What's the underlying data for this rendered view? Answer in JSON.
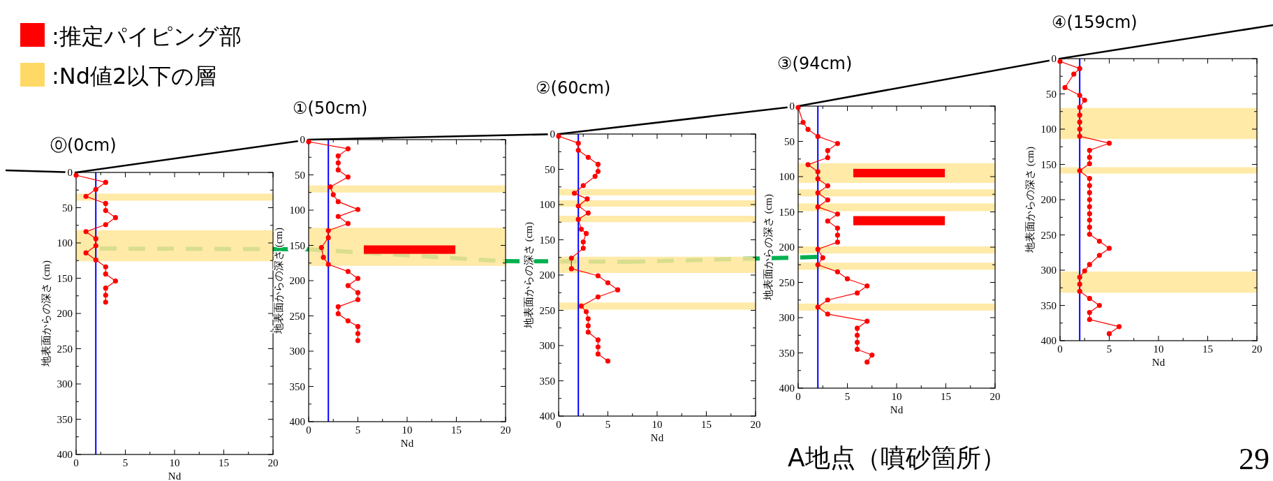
{
  "chart_data": [
    {
      "type": "other",
      "categories": [
        ":推定パイピング部",
        ":Nd値2以下の層"
      ],
      "colors": [
        "#ff0000",
        "#ffd966"
      ],
      "annotations": [
        "A地点（噴砂箇所）",
        "29"
      ]
    },
    {
      "type": "line",
      "title": "⓪(0cm)",
      "xlabel": "Nd",
      "ylabel": "地表面からの深さ (cm)",
      "xlim": [
        0,
        20
      ],
      "ylim": [
        400,
        0
      ],
      "xticks": [
        0,
        {
          "value": 2.5,
          "label": null
        },
        5,
        {
          "value": 7.5,
          "label": null
        },
        10,
        {
          "value": 12.5,
          "label": null
        },
        15,
        {
          "value": 17.5,
          "label": null
        },
        20
      ],
      "yticks": [
        0,
        {
          "value": 25,
          "label": null
        },
        50,
        {
          "value": 75,
          "label": null
        },
        100,
        {
          "value": 125,
          "label": null
        },
        150,
        {
          "value": 175,
          "label": null
        },
        200,
        {
          "value": 225,
          "label": null
        },
        250,
        {
          "value": 275,
          "label": null
        },
        300,
        {
          "value": 325,
          "label": null
        },
        350,
        {
          "value": 375,
          "label": null
        },
        400
      ],
      "marker": "circle",
      "series": [
        {
          "color": "#ff0000",
          "x": [
            0,
            3,
            2,
            1,
            3,
            3,
            4,
            3,
            1,
            2,
            2,
            1,
            2,
            3,
            3,
            4,
            3,
            3,
            3
          ],
          "values": [
            4,
            14,
            24,
            34,
            44,
            54,
            64,
            74,
            84,
            94,
            104,
            114,
            124,
            134,
            144,
            154,
            164,
            174,
            184
          ]
        }
      ],
      "ref_lines": [
        {
          "axis": "x",
          "value": 2,
          "color": "#0000ff"
        }
      ],
      "bands": [
        {
          "axis": "y",
          "from": 30,
          "to": 40,
          "color": "#ffe699"
        },
        {
          "axis": "y",
          "from": 82,
          "to": 126,
          "color": "#ffe699"
        }
      ]
    },
    {
      "type": "line",
      "title": "①(50cm)",
      "xlabel": "Nd",
      "ylabel": "地表面からの深さ (cm)",
      "xlim": [
        0,
        20
      ],
      "ylim": [
        400,
        0
      ],
      "xticks": [
        0,
        {
          "value": 2.5,
          "label": null
        },
        5,
        {
          "value": 7.5,
          "label": null
        },
        10,
        {
          "value": 12.5,
          "label": null
        },
        15,
        {
          "value": 17.5,
          "label": null
        },
        20
      ],
      "yticks": [
        0,
        {
          "value": 25,
          "label": null
        },
        50,
        {
          "value": 75,
          "label": null
        },
        100,
        {
          "value": 125,
          "label": null
        },
        150,
        {
          "value": 175,
          "label": null
        },
        200,
        {
          "value": 225,
          "label": null
        },
        250,
        {
          "value": 275,
          "label": null
        },
        300,
        {
          "value": 325,
          "label": null
        },
        350,
        {
          "value": 375,
          "label": null
        },
        400
      ],
      "marker": "circle",
      "series": [
        {
          "color": "#ff0000",
          "x": [
            0,
            4,
            3,
            3,
            3,
            4,
            2.2,
            2.5,
            3,
            5,
            3,
            4,
            2,
            2,
            1.3,
            1.5,
            2,
            4,
            5,
            4,
            5,
            5,
            3,
            3,
            4,
            5,
            5,
            5
          ],
          "values": [
            3,
            13,
            23,
            33,
            43,
            53,
            67,
            78,
            88,
            99,
            109,
            119,
            129,
            139,
            153,
            167,
            177,
            187,
            197,
            207,
            217,
            227,
            237,
            247,
            257,
            265,
            275,
            285
          ]
        }
      ],
      "ref_lines": [
        {
          "axis": "x",
          "value": 2,
          "color": "#0000ff"
        }
      ],
      "bands": [
        {
          "axis": "y",
          "from": 65,
          "to": 75,
          "color": "#ffe699"
        },
        {
          "axis": "y",
          "from": 125,
          "to": 179,
          "color": "#ffe699"
        },
        {
          "axis": "y",
          "from": 150,
          "to": 162,
          "color": "#ff0000"
        }
      ]
    },
    {
      "type": "line",
      "title": "②(60cm)",
      "xlabel": "Nd",
      "ylabel": "地表面からの深さ (cm)",
      "xlim": [
        0,
        20
      ],
      "ylim": [
        400,
        0
      ],
      "xticks": [
        0,
        {
          "value": 2.5,
          "label": null
        },
        5,
        {
          "value": 7.5,
          "label": null
        },
        10,
        {
          "value": 12.5,
          "label": null
        },
        15,
        {
          "value": 17.5,
          "label": null
        },
        20
      ],
      "yticks": [
        0,
        {
          "value": 25,
          "label": null
        },
        50,
        {
          "value": 75,
          "label": null
        },
        100,
        {
          "value": 125,
          "label": null
        },
        150,
        {
          "value": 175,
          "label": null
        },
        200,
        {
          "value": 225,
          "label": null
        },
        250,
        {
          "value": 275,
          "label": null
        },
        300,
        {
          "value": 325,
          "label": null
        },
        350,
        {
          "value": 375,
          "label": null
        },
        400
      ],
      "marker": "circle",
      "series": [
        {
          "color": "#ff0000",
          "x": [
            0,
            2,
            2,
            3,
            4,
            4,
            3.7,
            2.5,
            1.6,
            2.9,
            2,
            3,
            2,
            2.3,
            2.8,
            2.5,
            2.5,
            1.3,
            1.3,
            4,
            5,
            6,
            4,
            2.3,
            2.8,
            3,
            3,
            3,
            4,
            4,
            4,
            5
          ],
          "values": [
            3,
            13,
            23,
            33,
            43,
            53,
            60,
            73,
            84,
            92,
            102,
            112,
            121,
            135,
            141,
            153,
            162,
            176,
            191,
            201,
            211,
            221,
            231,
            244,
            252,
            262,
            272,
            281,
            292,
            302,
            312,
            322
          ]
        }
      ],
      "ref_lines": [
        {
          "axis": "x",
          "value": 2,
          "color": "#0000ff"
        }
      ],
      "bands": [
        {
          "axis": "y",
          "from": 78,
          "to": 87,
          "color": "#ffe699"
        },
        {
          "axis": "y",
          "from": 94,
          "to": 103,
          "color": "#ffe699"
        },
        {
          "axis": "y",
          "from": 116,
          "to": 125,
          "color": "#ffe699"
        },
        {
          "axis": "y",
          "from": 174,
          "to": 197,
          "color": "#ffe699"
        },
        {
          "axis": "y",
          "from": 239,
          "to": 249,
          "color": "#ffe699"
        }
      ]
    },
    {
      "type": "line",
      "title": "③(94cm)",
      "xlabel": "Nd",
      "ylabel": "地表面からの深さ (cm)",
      "xlim": [
        0,
        20
      ],
      "ylim": [
        400,
        0
      ],
      "xticks": [
        0,
        {
          "value": 2.5,
          "label": null
        },
        5,
        {
          "value": 7.5,
          "label": null
        },
        10,
        {
          "value": 12.5,
          "label": null
        },
        15,
        {
          "value": 17.5,
          "label": null
        },
        20
      ],
      "yticks": [
        0,
        {
          "value": 25,
          "label": null
        },
        50,
        {
          "value": 75,
          "label": null
        },
        100,
        {
          "value": 125,
          "label": null
        },
        150,
        {
          "value": 175,
          "label": null
        },
        200,
        {
          "value": 225,
          "label": null
        },
        250,
        {
          "value": 275,
          "label": null
        },
        300,
        {
          "value": 325,
          "label": null
        },
        350,
        {
          "value": 375,
          "label": null
        },
        400
      ],
      "marker": "circle",
      "series": [
        {
          "color": "#ff0000",
          "x": [
            0,
            0.5,
            1,
            2,
            4,
            3,
            3,
            1,
            2,
            2,
            3,
            2,
            3,
            2,
            4,
            3,
            4,
            4,
            4,
            2,
            2.5,
            2,
            4,
            5,
            7,
            6,
            3,
            2,
            3,
            7,
            6,
            6,
            6,
            6,
            7.5,
            7
          ],
          "values": [
            2,
            23,
            33,
            43,
            53,
            63,
            73,
            83,
            93,
            103,
            113,
            123,
            133,
            143,
            153,
            163,
            173,
            183,
            193,
            203,
            215,
            225,
            235,
            245,
            255,
            265,
            275,
            285,
            295,
            305,
            315,
            325,
            335,
            345,
            353,
            363
          ]
        }
      ],
      "ref_lines": [
        {
          "axis": "x",
          "value": 2,
          "color": "#0000ff"
        }
      ],
      "bands": [
        {
          "axis": "y",
          "from": 81,
          "to": 109,
          "color": "#ffe699"
        },
        {
          "axis": "y",
          "from": 118,
          "to": 128,
          "color": "#ffe699"
        },
        {
          "axis": "y",
          "from": 138,
          "to": 149,
          "color": "#ffe699"
        },
        {
          "axis": "y",
          "from": 199,
          "to": 209,
          "color": "#ffe699"
        },
        {
          "axis": "y",
          "from": 222,
          "to": 232,
          "color": "#ffe699"
        },
        {
          "axis": "y",
          "from": 280,
          "to": 290,
          "color": "#ffe699"
        },
        {
          "axis": "y",
          "from": 89,
          "to": 101,
          "color": "#ff0000"
        },
        {
          "axis": "y",
          "from": 156,
          "to": 169,
          "color": "#ff0000"
        }
      ]
    },
    {
      "type": "line",
      "title": "④(159cm)",
      "xlabel": "Nd",
      "ylabel": "地表面からの深さ (cm)",
      "xlim": [
        0,
        20
      ],
      "ylim": [
        400,
        0
      ],
      "xticks": [
        0,
        {
          "value": 2.5,
          "label": null
        },
        5,
        {
          "value": 7.5,
          "label": null
        },
        10,
        {
          "value": 12.5,
          "label": null
        },
        15,
        {
          "value": 17.5,
          "label": null
        },
        20
      ],
      "yticks": [
        0,
        {
          "value": 25,
          "label": null
        },
        50,
        {
          "value": 75,
          "label": null
        },
        100,
        {
          "value": 125,
          "label": null
        },
        150,
        {
          "value": 175,
          "label": null
        },
        200,
        {
          "value": 225,
          "label": null
        },
        250,
        {
          "value": 275,
          "label": null
        },
        300,
        {
          "value": 325,
          "label": null
        },
        350,
        {
          "value": 375,
          "label": null
        },
        400
      ],
      "marker": "circle",
      "series": [
        {
          "color": "#ff0000",
          "x": [
            0,
            2,
            1.4,
            0.5,
            2,
            2.5,
            2,
            2,
            2,
            2,
            2,
            5,
            3,
            3,
            3,
            2,
            3,
            3,
            3,
            3,
            3,
            3,
            3,
            3,
            3,
            4,
            5,
            4,
            3,
            2.5,
            2,
            2,
            2,
            3,
            4,
            3,
            3,
            6,
            5
          ],
          "values": [
            4,
            14,
            22,
            41,
            52,
            59,
            69,
            80,
            90,
            100,
            110,
            120,
            130,
            140,
            149,
            159,
            170,
            180,
            190,
            200,
            210,
            220,
            229,
            239,
            249,
            259,
            269,
            279,
            292,
            301,
            310,
            320,
            330,
            340,
            350,
            360,
            370,
            380,
            390
          ]
        }
      ],
      "ref_lines": [
        {
          "axis": "x",
          "value": 2,
          "color": "#0000ff"
        }
      ],
      "bands": [
        {
          "axis": "y",
          "from": 70,
          "to": 114,
          "color": "#ffe699"
        },
        {
          "axis": "y",
          "from": 154,
          "to": 163,
          "color": "#ffe699"
        },
        {
          "axis": "y",
          "from": 302,
          "to": 332,
          "color": "#ffe699"
        }
      ]
    }
  ]
}
